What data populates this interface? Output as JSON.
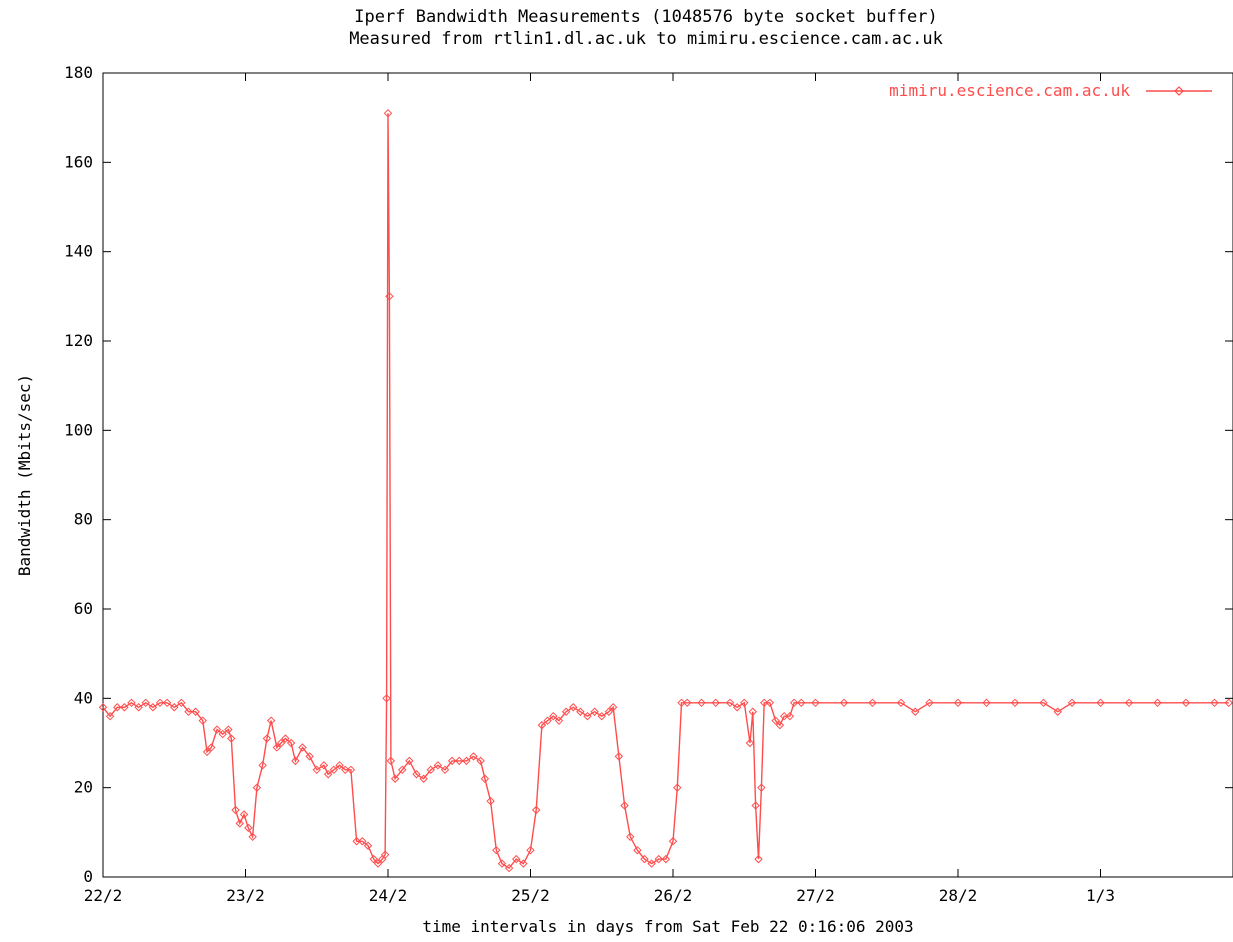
{
  "chart_data": {
    "type": "line",
    "title": "Iperf Bandwidth Measurements (1048576 byte socket buffer)",
    "subtitle": "Measured from rtlin1.dl.ac.uk to mimiru.escience.cam.ac.uk",
    "xlabel": "time intervals in days from Sat Feb 22  0:16:06 2003",
    "ylabel": "Bandwidth (Mbits/sec)",
    "xlim": [
      0,
      7.9
    ],
    "ylim": [
      0,
      180
    ],
    "x_ticks": [
      {
        "value": 0,
        "label": "22/2"
      },
      {
        "value": 1,
        "label": "23/2"
      },
      {
        "value": 2,
        "label": "24/2"
      },
      {
        "value": 3,
        "label": "25/2"
      },
      {
        "value": 4,
        "label": "26/2"
      },
      {
        "value": 5,
        "label": "27/2"
      },
      {
        "value": 6,
        "label": "28/2"
      },
      {
        "value": 7,
        "label": "1/3"
      }
    ],
    "y_ticks": [
      0,
      20,
      40,
      60,
      80,
      100,
      120,
      140,
      160,
      180
    ],
    "grid": false,
    "legend_position": "top-right",
    "series_color": "#ff4c4c",
    "series": [
      {
        "name": "mimiru.escience.cam.ac.uk",
        "points": [
          [
            0.0,
            38
          ],
          [
            0.05,
            36
          ],
          [
            0.1,
            38
          ],
          [
            0.15,
            38
          ],
          [
            0.2,
            39
          ],
          [
            0.25,
            38
          ],
          [
            0.3,
            39
          ],
          [
            0.35,
            38
          ],
          [
            0.4,
            39
          ],
          [
            0.45,
            39
          ],
          [
            0.5,
            38
          ],
          [
            0.55,
            39
          ],
          [
            0.6,
            37
          ],
          [
            0.65,
            37
          ],
          [
            0.7,
            35
          ],
          [
            0.73,
            28
          ],
          [
            0.76,
            29
          ],
          [
            0.8,
            33
          ],
          [
            0.84,
            32
          ],
          [
            0.88,
            33
          ],
          [
            0.9,
            31
          ],
          [
            0.93,
            15
          ],
          [
            0.96,
            12
          ],
          [
            0.99,
            14
          ],
          [
            1.02,
            11
          ],
          [
            1.05,
            9
          ],
          [
            1.08,
            20
          ],
          [
            1.12,
            25
          ],
          [
            1.15,
            31
          ],
          [
            1.18,
            35
          ],
          [
            1.22,
            29
          ],
          [
            1.25,
            30
          ],
          [
            1.28,
            31
          ],
          [
            1.32,
            30
          ],
          [
            1.35,
            26
          ],
          [
            1.4,
            29
          ],
          [
            1.45,
            27
          ],
          [
            1.5,
            24
          ],
          [
            1.55,
            25
          ],
          [
            1.58,
            23
          ],
          [
            1.62,
            24
          ],
          [
            1.66,
            25
          ],
          [
            1.7,
            24
          ],
          [
            1.74,
            24
          ],
          [
            1.78,
            8
          ],
          [
            1.82,
            8
          ],
          [
            1.86,
            7
          ],
          [
            1.9,
            4
          ],
          [
            1.93,
            3
          ],
          [
            1.96,
            4
          ],
          [
            1.98,
            5
          ],
          [
            1.99,
            40
          ],
          [
            2.0,
            171
          ],
          [
            2.01,
            130
          ],
          [
            2.02,
            26
          ],
          [
            2.05,
            22
          ],
          [
            2.1,
            24
          ],
          [
            2.15,
            26
          ],
          [
            2.2,
            23
          ],
          [
            2.25,
            22
          ],
          [
            2.3,
            24
          ],
          [
            2.35,
            25
          ],
          [
            2.4,
            24
          ],
          [
            2.45,
            26
          ],
          [
            2.5,
            26
          ],
          [
            2.55,
            26
          ],
          [
            2.6,
            27
          ],
          [
            2.65,
            26
          ],
          [
            2.68,
            22
          ],
          [
            2.72,
            17
          ],
          [
            2.76,
            6
          ],
          [
            2.8,
            3
          ],
          [
            2.85,
            2
          ],
          [
            2.9,
            4
          ],
          [
            2.95,
            3
          ],
          [
            3.0,
            6
          ],
          [
            3.04,
            15
          ],
          [
            3.08,
            34
          ],
          [
            3.12,
            35
          ],
          [
            3.16,
            36
          ],
          [
            3.2,
            35
          ],
          [
            3.25,
            37
          ],
          [
            3.3,
            38
          ],
          [
            3.35,
            37
          ],
          [
            3.4,
            36
          ],
          [
            3.45,
            37
          ],
          [
            3.5,
            36
          ],
          [
            3.55,
            37
          ],
          [
            3.58,
            38
          ],
          [
            3.62,
            27
          ],
          [
            3.66,
            16
          ],
          [
            3.7,
            9
          ],
          [
            3.75,
            6
          ],
          [
            3.8,
            4
          ],
          [
            3.85,
            3
          ],
          [
            3.9,
            4
          ],
          [
            3.95,
            4
          ],
          [
            4.0,
            8
          ],
          [
            4.03,
            20
          ],
          [
            4.06,
            39
          ],
          [
            4.1,
            39
          ],
          [
            4.2,
            39
          ],
          [
            4.3,
            39
          ],
          [
            4.4,
            39
          ],
          [
            4.45,
            38
          ],
          [
            4.5,
            39
          ],
          [
            4.54,
            30
          ],
          [
            4.56,
            37
          ],
          [
            4.58,
            16
          ],
          [
            4.6,
            4
          ],
          [
            4.62,
            20
          ],
          [
            4.64,
            39
          ],
          [
            4.68,
            39
          ],
          [
            4.72,
            35
          ],
          [
            4.75,
            34
          ],
          [
            4.78,
            36
          ],
          [
            4.82,
            36
          ],
          [
            4.85,
            39
          ],
          [
            4.9,
            39
          ],
          [
            5.0,
            39
          ],
          [
            5.2,
            39
          ],
          [
            5.4,
            39
          ],
          [
            5.6,
            39
          ],
          [
            5.7,
            37
          ],
          [
            5.8,
            39
          ],
          [
            6.0,
            39
          ],
          [
            6.2,
            39
          ],
          [
            6.4,
            39
          ],
          [
            6.6,
            39
          ],
          [
            6.7,
            37
          ],
          [
            6.8,
            39
          ],
          [
            7.0,
            39
          ],
          [
            7.2,
            39
          ],
          [
            7.4,
            39
          ],
          [
            7.6,
            39
          ],
          [
            7.8,
            39
          ],
          [
            7.9,
            39
          ]
        ]
      }
    ]
  }
}
